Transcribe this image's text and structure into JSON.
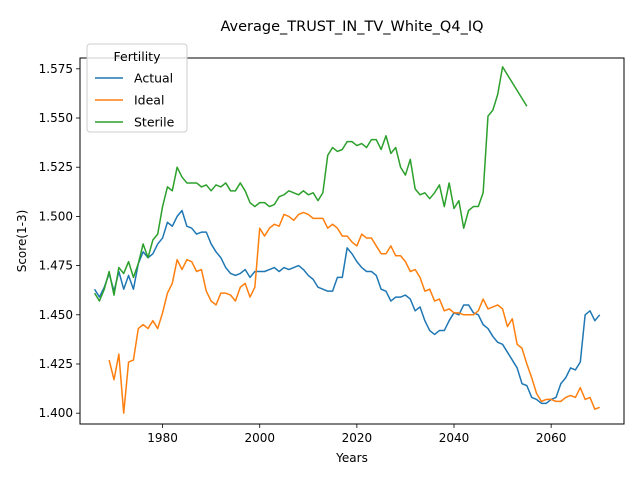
{
  "chart_data": {
    "type": "line",
    "title": "Average_TRUST_IN_TV_White_Q4_IQ",
    "xlabel": "Years",
    "ylabel": "Score(1-3)",
    "xlim": [
      1963,
      2075
    ],
    "ylim": [
      1.3945,
      1.5805
    ],
    "xticks": [
      1980,
      2000,
      2020,
      2040,
      2060
    ],
    "yticks": [
      1.4,
      1.425,
      1.45,
      1.475,
      1.5,
      1.525,
      1.55,
      1.575
    ],
    "ytick_labels": [
      "1.400",
      "1.425",
      "1.450",
      "1.475",
      "1.500",
      "1.525",
      "1.550",
      "1.575"
    ],
    "grid": false,
    "legend": {
      "title": "Fertility",
      "position": "top-left"
    },
    "series": [
      {
        "name": "Actual",
        "color": "#1f77b4",
        "x": [
          1966,
          1967,
          1968,
          1969,
          1970,
          1971,
          1972,
          1973,
          1974,
          1975,
          1976,
          1977,
          1978,
          1979,
          1980,
          1981,
          1982,
          1983,
          1984,
          1985,
          1986,
          1987,
          1988,
          1989,
          1990,
          1991,
          1992,
          1993,
          1994,
          1995,
          1996,
          1997,
          1998,
          1999,
          2000,
          2001,
          2002,
          2003,
          2004,
          2005,
          2006,
          2007,
          2008,
          2009,
          2010,
          2011,
          2012,
          2013,
          2014,
          2015,
          2016,
          2017,
          2018,
          2019,
          2020,
          2021,
          2022,
          2023,
          2024,
          2025,
          2026,
          2027,
          2028,
          2029,
          2030,
          2031,
          2032,
          2033,
          2034,
          2035,
          2036,
          2037,
          2038,
          2039,
          2040,
          2041,
          2042,
          2043,
          2044,
          2045,
          2046,
          2047,
          2048,
          2049,
          2050,
          2051,
          2052,
          2053,
          2054,
          2055,
          2056,
          2057,
          2058,
          2059,
          2060,
          2061,
          2062,
          2063,
          2064,
          2065,
          2066,
          2067,
          2068,
          2069,
          2070
        ],
        "values": [
          1.463,
          1.459,
          1.464,
          1.471,
          1.462,
          1.472,
          1.463,
          1.47,
          1.463,
          1.476,
          1.482,
          1.479,
          1.481,
          1.486,
          1.489,
          1.497,
          1.495,
          1.5,
          1.503,
          1.495,
          1.494,
          1.491,
          1.492,
          1.492,
          1.486,
          1.482,
          1.479,
          1.474,
          1.471,
          1.47,
          1.471,
          1.473,
          1.469,
          1.472,
          1.472,
          1.472,
          1.473,
          1.474,
          1.472,
          1.474,
          1.473,
          1.474,
          1.475,
          1.473,
          1.47,
          1.468,
          1.464,
          1.463,
          1.462,
          1.462,
          1.469,
          1.469,
          1.484,
          1.481,
          1.477,
          1.474,
          1.472,
          1.472,
          1.47,
          1.463,
          1.462,
          1.457,
          1.459,
          1.459,
          1.46,
          1.458,
          1.452,
          1.454,
          1.447,
          1.442,
          1.44,
          1.442,
          1.442,
          1.447,
          1.451,
          1.45,
          1.455,
          1.455,
          1.451,
          1.45,
          1.445,
          1.443,
          1.439,
          1.436,
          1.435,
          1.431,
          1.427,
          1.423,
          1.415,
          1.414,
          1.408,
          1.407,
          1.405,
          1.405,
          1.407,
          1.408,
          1.415,
          1.418,
          1.423,
          1.422,
          1.426,
          1.45,
          1.452,
          1.447,
          1.45
        ]
      },
      {
        "name": "Ideal",
        "color": "#ff7f0e",
        "x": [
          1969,
          1970,
          1971,
          1972,
          1973,
          1974,
          1975,
          1976,
          1977,
          1978,
          1979,
          1980,
          1981,
          1982,
          1983,
          1984,
          1985,
          1986,
          1987,
          1988,
          1989,
          1990,
          1991,
          1992,
          1993,
          1994,
          1995,
          1996,
          1997,
          1998,
          1999,
          2000,
          2001,
          2002,
          2003,
          2004,
          2005,
          2006,
          2007,
          2008,
          2009,
          2010,
          2011,
          2012,
          2013,
          2014,
          2015,
          2016,
          2017,
          2018,
          2019,
          2020,
          2021,
          2022,
          2023,
          2024,
          2025,
          2026,
          2027,
          2028,
          2029,
          2030,
          2031,
          2032,
          2033,
          2034,
          2035,
          2036,
          2037,
          2038,
          2039,
          2040,
          2041,
          2042,
          2043,
          2044,
          2045,
          2046,
          2047,
          2048,
          2049,
          2050,
          2051,
          2052,
          2053,
          2054,
          2055,
          2056,
          2057,
          2058,
          2059,
          2060,
          2061,
          2062,
          2063,
          2064,
          2065,
          2066,
          2067,
          2068,
          2069,
          2070
        ],
        "values": [
          1.427,
          1.417,
          1.43,
          1.4,
          1.426,
          1.427,
          1.443,
          1.445,
          1.443,
          1.447,
          1.443,
          1.451,
          1.461,
          1.466,
          1.478,
          1.473,
          1.478,
          1.477,
          1.472,
          1.473,
          1.462,
          1.457,
          1.455,
          1.461,
          1.461,
          1.46,
          1.457,
          1.464,
          1.466,
          1.459,
          1.464,
          1.494,
          1.49,
          1.494,
          1.496,
          1.495,
          1.501,
          1.5,
          1.498,
          1.501,
          1.502,
          1.501,
          1.499,
          1.499,
          1.499,
          1.494,
          1.496,
          1.494,
          1.49,
          1.49,
          1.487,
          1.485,
          1.491,
          1.489,
          1.489,
          1.485,
          1.481,
          1.481,
          1.485,
          1.48,
          1.48,
          1.477,
          1.472,
          1.473,
          1.469,
          1.462,
          1.463,
          1.457,
          1.458,
          1.452,
          1.453,
          1.451,
          1.451,
          1.45,
          1.45,
          1.45,
          1.452,
          1.458,
          1.453,
          1.454,
          1.455,
          1.453,
          1.444,
          1.448,
          1.435,
          1.433,
          1.425,
          1.418,
          1.41,
          1.406,
          1.407,
          1.407,
          1.406,
          1.406,
          1.408,
          1.409,
          1.408,
          1.413,
          1.407,
          1.408,
          1.402,
          1.403
        ]
      },
      {
        "name": "Sterile",
        "color": "#2ca02c",
        "x": [
          1966,
          1967,
          1968,
          1969,
          1970,
          1971,
          1972,
          1973,
          1974,
          1975,
          1976,
          1977,
          1978,
          1979,
          1980,
          1981,
          1982,
          1983,
          1984,
          1985,
          1986,
          1987,
          1988,
          1989,
          1990,
          1991,
          1992,
          1993,
          1994,
          1995,
          1996,
          1997,
          1998,
          1999,
          2000,
          2001,
          2002,
          2003,
          2004,
          2005,
          2006,
          2007,
          2008,
          2009,
          2010,
          2011,
          2012,
          2013,
          2014,
          2015,
          2016,
          2017,
          2018,
          2019,
          2020,
          2021,
          2022,
          2023,
          2024,
          2025,
          2026,
          2027,
          2028,
          2029,
          2030,
          2031,
          2032,
          2033,
          2034,
          2035,
          2036,
          2037,
          2038,
          2039,
          2040,
          2041,
          2042,
          2043,
          2044,
          2045,
          2046,
          2047,
          2048,
          2049,
          2050,
          2051,
          2052,
          2053,
          2054,
          2055
        ],
        "values": [
          1.461,
          1.457,
          1.463,
          1.472,
          1.46,
          1.474,
          1.471,
          1.477,
          1.469,
          1.476,
          1.486,
          1.479,
          1.488,
          1.491,
          1.505,
          1.515,
          1.513,
          1.525,
          1.52,
          1.517,
          1.517,
          1.517,
          1.515,
          1.516,
          1.513,
          1.516,
          1.515,
          1.517,
          1.513,
          1.513,
          1.517,
          1.513,
          1.507,
          1.505,
          1.507,
          1.507,
          1.505,
          1.506,
          1.51,
          1.511,
          1.513,
          1.512,
          1.511,
          1.513,
          1.511,
          1.512,
          1.508,
          1.512,
          1.531,
          1.535,
          1.533,
          1.534,
          1.538,
          1.538,
          1.536,
          1.537,
          1.535,
          1.539,
          1.539,
          1.534,
          1.541,
          1.532,
          1.535,
          1.525,
          1.521,
          1.529,
          1.514,
          1.511,
          1.512,
          1.509,
          1.512,
          1.516,
          1.505,
          1.517,
          1.504,
          1.508,
          1.494,
          1.503,
          1.505,
          1.505,
          1.512,
          1.551,
          1.554,
          1.562,
          1.576,
          1.572,
          1.568,
          1.564,
          1.56,
          1.556
        ]
      }
    ]
  }
}
